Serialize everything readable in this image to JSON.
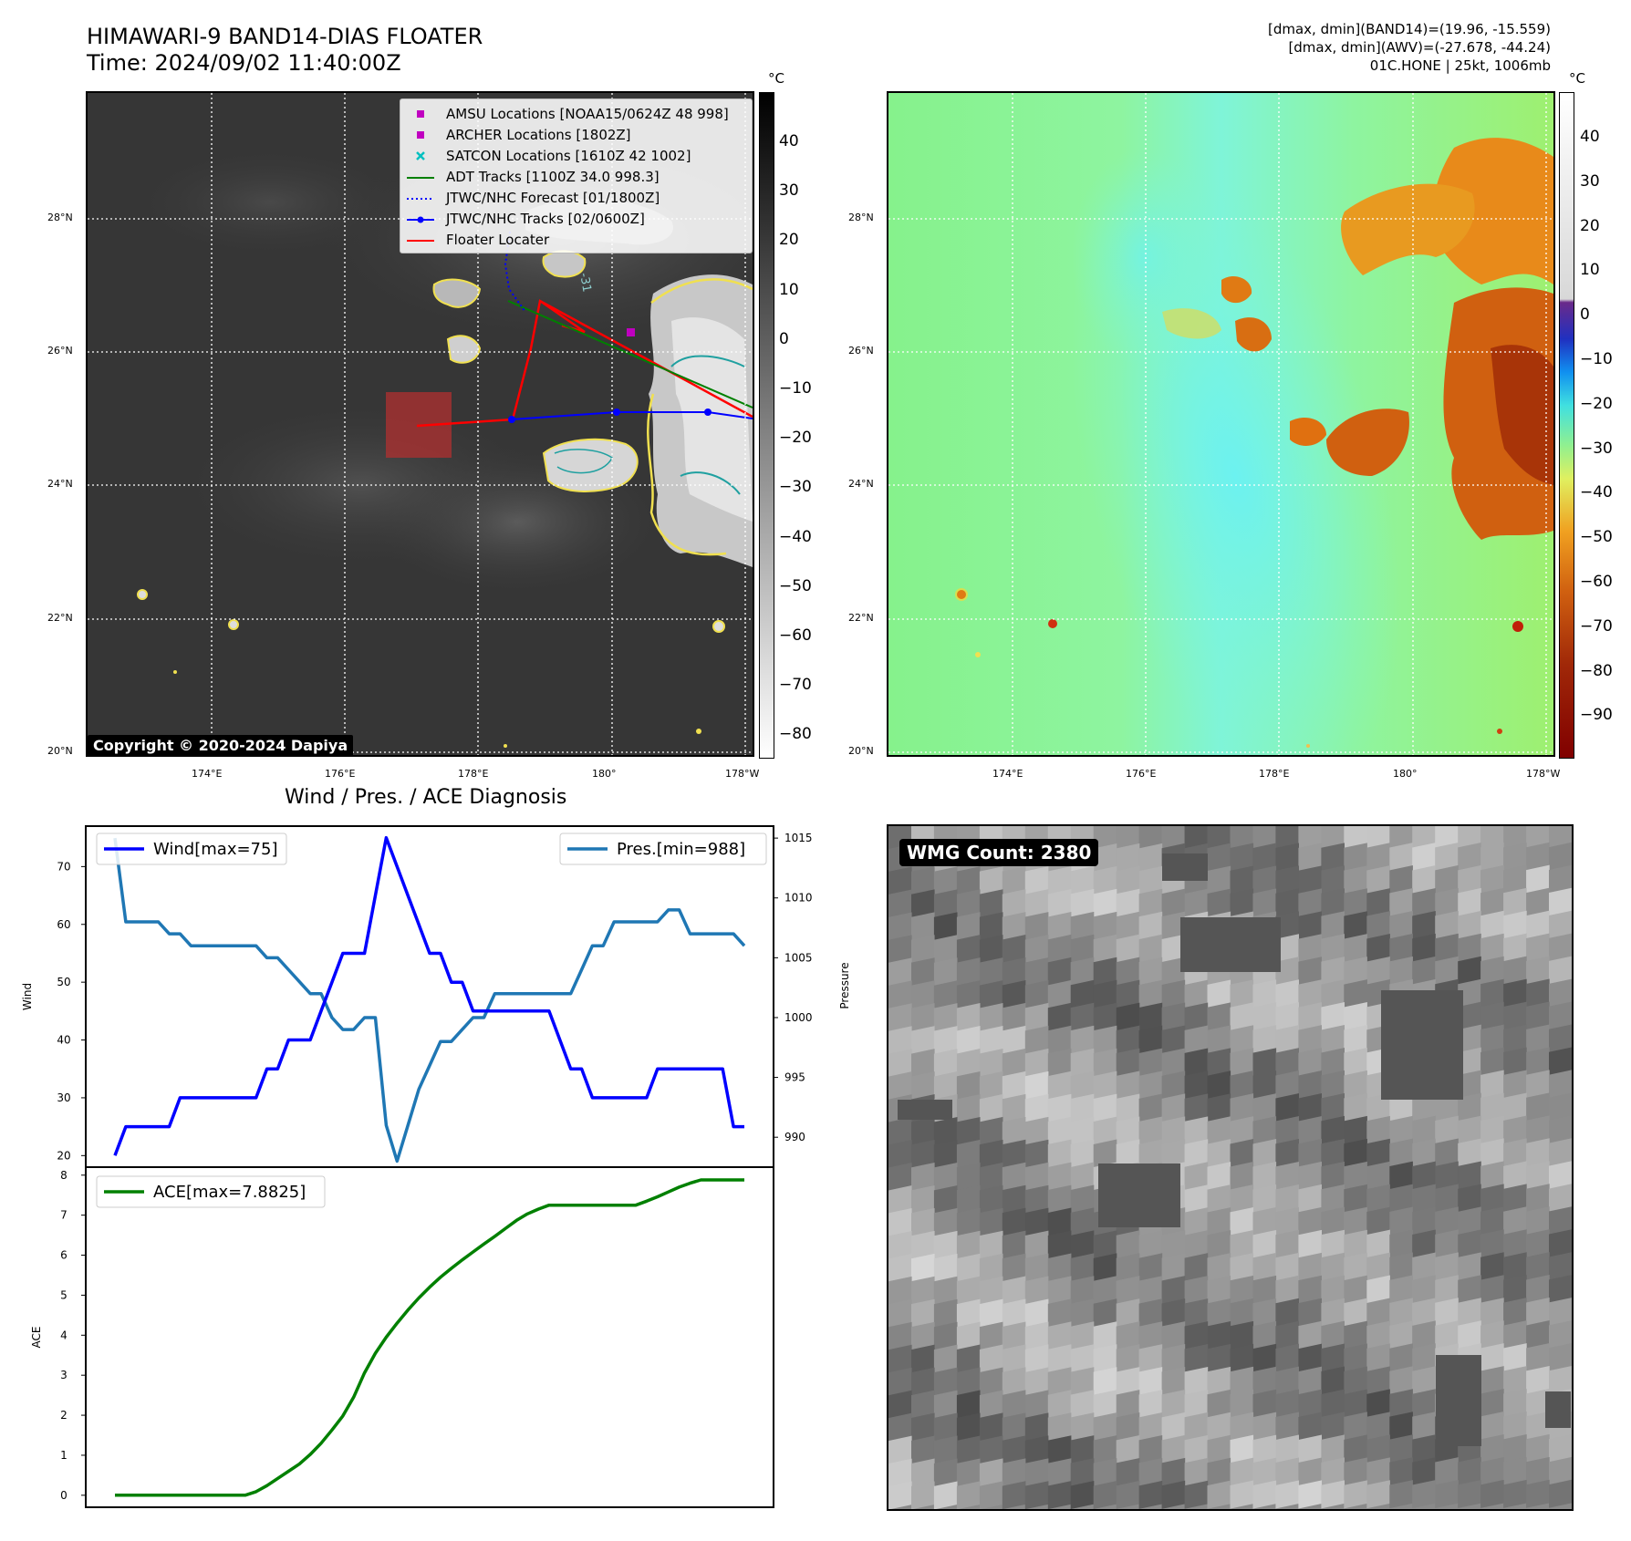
{
  "header": {
    "title_line1": "HIMAWARI-9 BAND14-DIAS FLOATER",
    "title_line2": "Time: 2024/09/02 11:40:00Z",
    "stats_line1": "[dmax, dmin](BAND14)=(19.96, -15.559)",
    "stats_line2": "[dmax, dmin](AWV)=(-27.678, -44.24)",
    "stats_line3": "01C.HONE | 25kt, 1006mb"
  },
  "map": {
    "lat_labels": [
      "28°N",
      "26°N",
      "24°N",
      "22°N",
      "20°N"
    ],
    "lon_labels": [
      "174°E",
      "176°E",
      "178°E",
      "180°",
      "178°W"
    ],
    "copyright": "Copyright © 2020-2024 Dapiya",
    "contour_label": "-31"
  },
  "ir_colorbar": {
    "unit": "°C",
    "ticks": [
      "40",
      "30",
      "20",
      "10",
      "0",
      "−10",
      "−20",
      "−30",
      "−40",
      "−50",
      "−60",
      "−70",
      "−80"
    ]
  },
  "wv_colorbar": {
    "unit": "°C",
    "ticks": [
      "40",
      "30",
      "20",
      "10",
      "0",
      "−10",
      "−20",
      "−30",
      "−40",
      "−50",
      "−60",
      "−70",
      "−80",
      "−90"
    ]
  },
  "legend": {
    "items": [
      {
        "label": "AMSU Locations [NOAA15/0624Z 48 998]",
        "color": "#c000c0",
        "marker": "square"
      },
      {
        "label": "ARCHER Locations [1802Z]",
        "color": "#c000c0",
        "marker": "square"
      },
      {
        "label": "SATCON Locations [1610Z 42 1002]",
        "color": "#00c0c0",
        "marker": "x"
      },
      {
        "label": "ADT Tracks [1100Z 34.0 998.3]",
        "color": "#008000",
        "marker": "line"
      },
      {
        "label": "JTWC/NHC Forecast [01/1800Z]",
        "color": "#0000ff",
        "marker": "dotted"
      },
      {
        "label": "JTWC/NHC Tracks [02/0600Z]",
        "color": "#0000ff",
        "marker": "line-dot"
      },
      {
        "label": "Floater Locater",
        "color": "#ff0000",
        "marker": "line"
      }
    ]
  },
  "wmg": {
    "badge": "WMG Count: 2380"
  },
  "colors": {
    "wind": "#0000ff",
    "pressure": "#1f77b4",
    "ace": "#008000"
  },
  "chart_data": [
    {
      "type": "line",
      "title": "Wind / Pres. / ACE Diagnosis",
      "ylabel": "Wind",
      "y2label": "Pressure",
      "ylim": [
        18,
        77
      ],
      "y2lim": [
        987.5,
        1016
      ],
      "yticks": [
        20,
        30,
        40,
        50,
        60,
        70
      ],
      "y2ticks": [
        990,
        995,
        1000,
        1005,
        1010,
        1015
      ],
      "x": [
        0,
        1,
        2,
        3,
        4,
        5,
        6,
        7,
        8,
        9,
        10,
        11,
        12,
        13,
        14,
        15,
        16,
        17,
        18,
        19,
        20,
        21,
        22,
        23,
        24,
        25,
        26,
        27,
        28,
        29,
        30,
        31,
        32,
        33,
        34,
        35,
        36,
        37,
        38,
        39,
        40,
        41,
        42,
        43,
        44,
        45,
        46,
        47,
        48,
        49,
        50,
        51,
        52,
        53,
        54,
        55,
        56,
        57,
        58
      ],
      "series": [
        {
          "name": "Wind[max=75]",
          "values": [
            20,
            25,
            25,
            25,
            25,
            25,
            30,
            30,
            30,
            30,
            30,
            30,
            30,
            30,
            35,
            35,
            40,
            40,
            40,
            45,
            50,
            55,
            55,
            55,
            65,
            75,
            70,
            65,
            60,
            55,
            55,
            50,
            50,
            45,
            45,
            45,
            45,
            45,
            45,
            45,
            45,
            40,
            35,
            35,
            30,
            30,
            30,
            30,
            30,
            30,
            35,
            35,
            35,
            35,
            35,
            35,
            35,
            25,
            25
          ]
        },
        {
          "name": "Pres.[min=988]",
          "values": [
            1015,
            1008,
            1008,
            1008,
            1008,
            1007,
            1007,
            1006,
            1006,
            1006,
            1006,
            1006,
            1006,
            1006,
            1005,
            1005,
            1004,
            1003,
            1002,
            1002,
            1000,
            999,
            999,
            1000,
            1000,
            991,
            988,
            991,
            994,
            996,
            998,
            998,
            999,
            1000,
            1000,
            1002,
            1002,
            1002,
            1002,
            1002,
            1002,
            1002,
            1002,
            1004,
            1006,
            1006,
            1008,
            1008,
            1008,
            1008,
            1008,
            1009,
            1009,
            1007,
            1007,
            1007,
            1007,
            1007,
            1006
          ]
        }
      ]
    },
    {
      "type": "line",
      "ylabel": "ACE",
      "ylim": [
        -0.3,
        8.2
      ],
      "yticks": [
        0,
        1,
        2,
        3,
        4,
        5,
        6,
        7,
        8
      ],
      "x": [
        0,
        1,
        2,
        3,
        4,
        5,
        6,
        7,
        8,
        9,
        10,
        11,
        12,
        13,
        14,
        15,
        16,
        17,
        18,
        19,
        20,
        21,
        22,
        23,
        24,
        25,
        26,
        27,
        28,
        29,
        30,
        31,
        32,
        33,
        34,
        35,
        36,
        37,
        38,
        39,
        40,
        41,
        42,
        43,
        44,
        45,
        46,
        47,
        48,
        49,
        50,
        51,
        52,
        53,
        54,
        55,
        56,
        57,
        58
      ],
      "series": [
        {
          "name": "ACE[max=7.8825]",
          "values": [
            0,
            0,
            0,
            0,
            0,
            0,
            0,
            0,
            0,
            0,
            0,
            0,
            0,
            0.09,
            0.24,
            0.42,
            0.6,
            0.78,
            1.02,
            1.3,
            1.63,
            1.98,
            2.45,
            3.06,
            3.55,
            3.95,
            4.3,
            4.63,
            4.93,
            5.2,
            5.45,
            5.67,
            5.88,
            6.08,
            6.28,
            6.47,
            6.67,
            6.87,
            7.03,
            7.15,
            7.25,
            7.25,
            7.25,
            7.25,
            7.25,
            7.25,
            7.25,
            7.25,
            7.25,
            7.35,
            7.46,
            7.58,
            7.7,
            7.8,
            7.88,
            7.88,
            7.88,
            7.88,
            7.88
          ]
        }
      ]
    }
  ]
}
